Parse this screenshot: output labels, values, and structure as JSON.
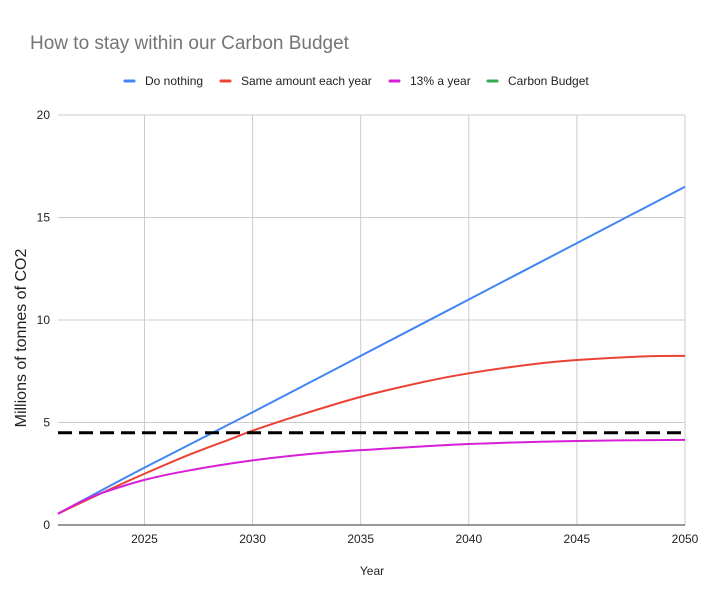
{
  "chart_data": {
    "type": "line",
    "title": "How to stay within our Carbon Budget",
    "xlabel": "Year",
    "ylabel": "Millions of tonnes of CO2",
    "xlim": [
      2021,
      2050
    ],
    "ylim": [
      0,
      20
    ],
    "x_ticks": [
      2025,
      2030,
      2035,
      2040,
      2045,
      2050
    ],
    "y_ticks": [
      0,
      5,
      10,
      15,
      20
    ],
    "grid": true,
    "legend_position": "top",
    "series": [
      {
        "name": "Do nothing",
        "color": "#4285f4",
        "x": [
          2021,
          2025,
          2030,
          2035,
          2040,
          2045,
          2050
        ],
        "y": [
          0.55,
          2.8,
          5.5,
          8.25,
          11.0,
          13.75,
          16.5
        ]
      },
      {
        "name": "Same amount each year",
        "color": "#ea4335",
        "x": [
          2021,
          2023,
          2025,
          2027,
          2029,
          2030,
          2032,
          2035,
          2038,
          2040,
          2043,
          2045,
          2048,
          2050
        ],
        "y": [
          0.55,
          1.55,
          2.5,
          3.4,
          4.2,
          4.6,
          5.3,
          6.25,
          7.0,
          7.4,
          7.85,
          8.05,
          8.22,
          8.25
        ]
      },
      {
        "name": "13% a year",
        "color": "#d61fd6",
        "x": [
          2021,
          2022,
          2023,
          2025,
          2027,
          2030,
          2033,
          2035,
          2040,
          2045,
          2050
        ],
        "y": [
          0.55,
          1.1,
          1.55,
          2.2,
          2.65,
          3.15,
          3.5,
          3.65,
          3.95,
          4.1,
          4.15
        ]
      },
      {
        "name": "Carbon Budget",
        "color": "#34a853",
        "line_color": "#000000",
        "dashed": true,
        "x": [
          2021,
          2050
        ],
        "y": [
          4.5,
          4.5
        ]
      }
    ]
  }
}
